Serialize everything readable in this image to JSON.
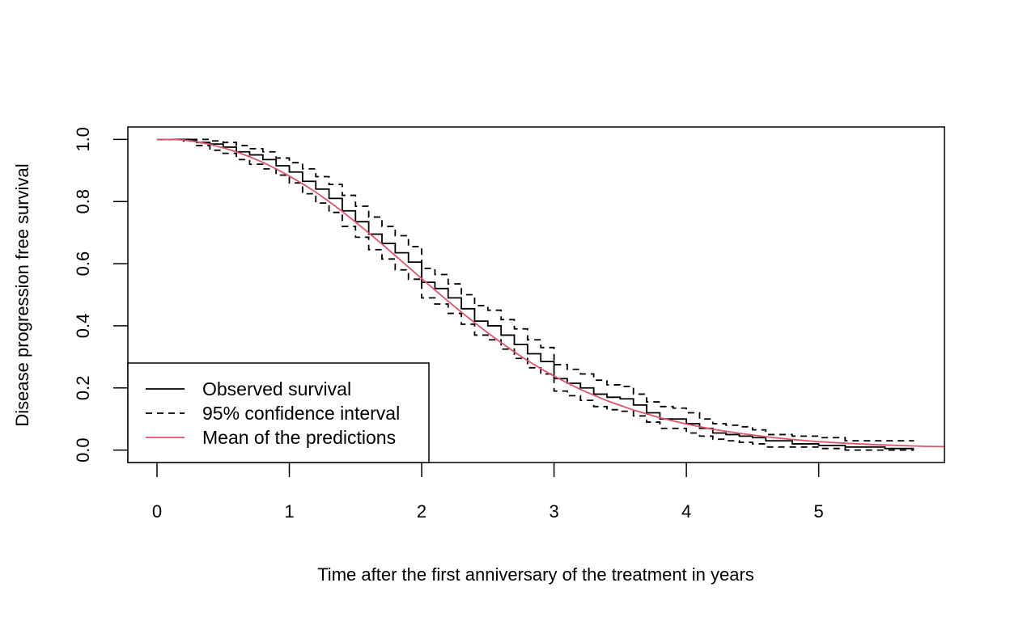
{
  "chart_data": {
    "type": "line",
    "title": "",
    "xlabel": "Time after the first anniversary of the treatment in years",
    "ylabel": "Disease progression free survival",
    "xlim": [
      -0.22,
      5.95
    ],
    "ylim": [
      -0.04,
      1.04
    ],
    "xticks": [
      0,
      1,
      2,
      3,
      4,
      5
    ],
    "yticks": [
      0.0,
      0.2,
      0.4,
      0.6,
      0.8,
      1.0
    ],
    "xtick_labels": [
      "0",
      "1",
      "2",
      "3",
      "4",
      "5"
    ],
    "ytick_labels": [
      "0.0",
      "0.2",
      "0.4",
      "0.6",
      "0.8",
      "1.0"
    ],
    "grid": false,
    "legend_position": "bottom-left",
    "legend": [
      {
        "label": "Observed survival",
        "color": "#000000",
        "style": "solid"
      },
      {
        "label": "95% confidence interval",
        "color": "#000000",
        "style": "dashed"
      },
      {
        "label": "Mean of the predictions",
        "color": "#DF536B",
        "style": "solid"
      }
    ],
    "series": [
      {
        "name": "Observed survival",
        "color": "#000000",
        "style": "step",
        "x": [
          0,
          0.2,
          0.3,
          0.4,
          0.5,
          0.6,
          0.7,
          0.8,
          0.9,
          1.0,
          1.1,
          1.2,
          1.3,
          1.4,
          1.5,
          1.6,
          1.7,
          1.8,
          1.9,
          2.0,
          2.1,
          2.2,
          2.3,
          2.4,
          2.5,
          2.6,
          2.7,
          2.8,
          2.9,
          3.0,
          3.1,
          3.2,
          3.3,
          3.4,
          3.5,
          3.6,
          3.7,
          3.8,
          3.9,
          4.0,
          4.1,
          4.2,
          4.3,
          4.4,
          4.5,
          4.6,
          4.8,
          5.0,
          5.2,
          5.5,
          5.72
        ],
        "y": [
          1.0,
          1.0,
          0.99,
          0.985,
          0.975,
          0.96,
          0.95,
          0.935,
          0.915,
          0.895,
          0.865,
          0.84,
          0.81,
          0.77,
          0.735,
          0.695,
          0.665,
          0.635,
          0.605,
          0.54,
          0.52,
          0.49,
          0.455,
          0.415,
          0.4,
          0.37,
          0.34,
          0.31,
          0.285,
          0.23,
          0.215,
          0.2,
          0.18,
          0.17,
          0.165,
          0.145,
          0.12,
          0.1,
          0.1,
          0.085,
          0.07,
          0.055,
          0.05,
          0.045,
          0.04,
          0.03,
          0.02,
          0.015,
          0.01,
          0.005,
          0.005
        ]
      },
      {
        "name": "95% confidence interval",
        "color": "#000000",
        "style": "step-dashed",
        "x": [
          0,
          0.2,
          0.3,
          0.4,
          0.5,
          0.6,
          0.7,
          0.8,
          0.9,
          1.0,
          1.1,
          1.2,
          1.3,
          1.4,
          1.5,
          1.6,
          1.7,
          1.8,
          1.9,
          2.0,
          2.1,
          2.2,
          2.3,
          2.4,
          2.5,
          2.6,
          2.7,
          2.8,
          2.9,
          3.0,
          3.1,
          3.2,
          3.3,
          3.4,
          3.5,
          3.6,
          3.7,
          3.8,
          3.9,
          4.0,
          4.1,
          4.2,
          4.3,
          4.4,
          4.5,
          4.6,
          4.8,
          5.0,
          5.2,
          5.5,
          5.72
        ],
        "y": [
          1.0,
          1.0,
          1.0,
          0.995,
          0.99,
          0.98,
          0.97,
          0.96,
          0.94,
          0.925,
          0.905,
          0.88,
          0.855,
          0.82,
          0.785,
          0.75,
          0.72,
          0.69,
          0.655,
          0.585,
          0.565,
          0.535,
          0.5,
          0.465,
          0.45,
          0.42,
          0.39,
          0.355,
          0.33,
          0.275,
          0.26,
          0.245,
          0.225,
          0.21,
          0.205,
          0.18,
          0.155,
          0.14,
          0.135,
          0.12,
          0.1,
          0.085,
          0.08,
          0.075,
          0.065,
          0.05,
          0.045,
          0.04,
          0.03,
          0.03,
          0.03
        ]
      },
      {
        "name": "95% confidence interval",
        "color": "#000000",
        "style": "step-dashed",
        "x": [
          0,
          0.2,
          0.3,
          0.4,
          0.5,
          0.6,
          0.7,
          0.8,
          0.9,
          1.0,
          1.1,
          1.2,
          1.3,
          1.4,
          1.5,
          1.6,
          1.7,
          1.8,
          1.9,
          2.0,
          2.1,
          2.2,
          2.3,
          2.4,
          2.5,
          2.6,
          2.7,
          2.8,
          2.9,
          3.0,
          3.1,
          3.2,
          3.3,
          3.4,
          3.5,
          3.6,
          3.7,
          3.8,
          3.9,
          4.0,
          4.1,
          4.2,
          4.3,
          4.4,
          4.5,
          4.6,
          4.8,
          5.0,
          5.2,
          5.5,
          5.72
        ],
        "y": [
          1.0,
          0.995,
          0.98,
          0.965,
          0.955,
          0.935,
          0.92,
          0.905,
          0.885,
          0.86,
          0.825,
          0.795,
          0.765,
          0.72,
          0.685,
          0.645,
          0.615,
          0.58,
          0.55,
          0.49,
          0.47,
          0.44,
          0.405,
          0.37,
          0.355,
          0.325,
          0.295,
          0.265,
          0.245,
          0.19,
          0.175,
          0.16,
          0.14,
          0.13,
          0.125,
          0.11,
          0.09,
          0.07,
          0.07,
          0.055,
          0.045,
          0.035,
          0.03,
          0.025,
          0.02,
          0.01,
          0.01,
          0.005,
          0.0,
          0.0,
          0.0
        ]
      },
      {
        "name": "Mean of the predictions",
        "color": "#DF536B",
        "style": "smooth",
        "x": [
          0,
          0.1,
          0.2,
          0.3,
          0.4,
          0.5,
          0.6,
          0.7,
          0.8,
          0.9,
          1.0,
          1.1,
          1.2,
          1.3,
          1.4,
          1.5,
          1.6,
          1.7,
          1.8,
          1.9,
          2.0,
          2.1,
          2.2,
          2.3,
          2.4,
          2.5,
          2.6,
          2.7,
          2.8,
          2.9,
          3.0,
          3.2,
          3.4,
          3.6,
          3.8,
          4.0,
          4.2,
          4.4,
          4.6,
          4.8,
          5.0,
          5.2,
          5.4,
          5.6,
          5.8,
          5.95
        ],
        "y": [
          1.0,
          1.0,
          0.998,
          0.992,
          0.984,
          0.973,
          0.96,
          0.944,
          0.926,
          0.905,
          0.882,
          0.857,
          0.83,
          0.8,
          0.768,
          0.734,
          0.699,
          0.663,
          0.626,
          0.589,
          0.552,
          0.515,
          0.479,
          0.444,
          0.41,
          0.377,
          0.346,
          0.316,
          0.288,
          0.262,
          0.238,
          0.195,
          0.159,
          0.129,
          0.104,
          0.084,
          0.067,
          0.054,
          0.043,
          0.034,
          0.027,
          0.022,
          0.018,
          0.015,
          0.012,
          0.011
        ]
      }
    ]
  }
}
